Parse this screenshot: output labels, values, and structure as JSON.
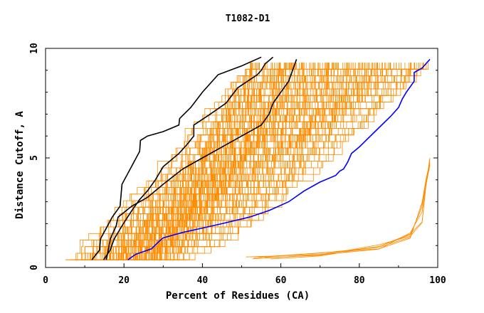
{
  "chart_data": {
    "type": "line",
    "title": "T1082-D1",
    "xlabel": "Percent of Residues (CA)",
    "ylabel": "Distance Cutoff, A",
    "xlim": [
      0,
      100
    ],
    "ylim": [
      0,
      10
    ],
    "x_ticks": [
      0,
      20,
      40,
      60,
      80,
      100
    ],
    "y_ticks": [
      0,
      5,
      10
    ],
    "grid": false,
    "legend": "none",
    "colors": {
      "background_models": "#ff8c00",
      "highlight_black": "#000000",
      "highlight_blue": "#0000ff"
    },
    "highlight_series": [
      {
        "color": "#000000",
        "points": [
          [
            11.8,
            0.35
          ],
          [
            13.8,
            0.8
          ],
          [
            14,
            1.3
          ],
          [
            17,
            2.3
          ],
          [
            19,
            2.8
          ],
          [
            19.5,
            3.8
          ],
          [
            21,
            4.3
          ],
          [
            24,
            5.3
          ],
          [
            24.2,
            5.8
          ],
          [
            26,
            6.0
          ],
          [
            30,
            6.2
          ],
          [
            34,
            6.5
          ],
          [
            34.2,
            6.8
          ],
          [
            37,
            7.3
          ],
          [
            40,
            8.0
          ],
          [
            44,
            8.8
          ],
          [
            50,
            9.2
          ],
          [
            55,
            9.6
          ]
        ]
      },
      {
        "color": "#000000",
        "points": [
          [
            14.8,
            0.35
          ],
          [
            16.5,
            0.8
          ],
          [
            17.5,
            1.3
          ],
          [
            19.5,
            1.9
          ],
          [
            22,
            2.6
          ],
          [
            24,
            3.1
          ],
          [
            26,
            3.5
          ],
          [
            28,
            4.0
          ],
          [
            30,
            4.6
          ],
          [
            34,
            5.2
          ],
          [
            36,
            5.6
          ],
          [
            37.8,
            6.0
          ],
          [
            37.8,
            6.5
          ],
          [
            42,
            7.0
          ],
          [
            46,
            7.5
          ],
          [
            49,
            8.2
          ],
          [
            54,
            8.8
          ],
          [
            55,
            9.0
          ],
          [
            56,
            9.3
          ],
          [
            58,
            9.6
          ]
        ]
      },
      {
        "color": "#000000",
        "points": [
          [
            15.5,
            0.35
          ],
          [
            16,
            0.8
          ],
          [
            16.5,
            1.3
          ],
          [
            18,
            1.9
          ],
          [
            18.5,
            2.3
          ],
          [
            22,
            2.8
          ],
          [
            26,
            3.2
          ],
          [
            30,
            3.8
          ],
          [
            35,
            4.5
          ],
          [
            40,
            5.0
          ],
          [
            45,
            5.5
          ],
          [
            50,
            6.0
          ],
          [
            55,
            6.5
          ],
          [
            57,
            7.0
          ],
          [
            58,
            7.5
          ],
          [
            60,
            8.0
          ],
          [
            62,
            8.5
          ],
          [
            64,
            9.5
          ]
        ]
      },
      {
        "color": "#0000ff",
        "points": [
          [
            21,
            0.35
          ],
          [
            23,
            0.6
          ],
          [
            27,
            0.85
          ],
          [
            29,
            1.2
          ],
          [
            30,
            1.35
          ],
          [
            35,
            1.6
          ],
          [
            40,
            1.8
          ],
          [
            45,
            2.0
          ],
          [
            52,
            2.3
          ],
          [
            57,
            2.6
          ],
          [
            62,
            3.0
          ],
          [
            66,
            3.5
          ],
          [
            70,
            3.9
          ],
          [
            74,
            4.2
          ],
          [
            75,
            4.4
          ],
          [
            76,
            4.5
          ],
          [
            77,
            4.8
          ],
          [
            78,
            5.2
          ],
          [
            80,
            5.5
          ],
          [
            84,
            6.2
          ],
          [
            88,
            6.9
          ],
          [
            90,
            7.3
          ],
          [
            91,
            7.7
          ],
          [
            92,
            8.0
          ],
          [
            94,
            8.5
          ],
          [
            94,
            8.9
          ],
          [
            96,
            9.1
          ],
          [
            98,
            9.5
          ]
        ]
      }
    ],
    "background_series_count": 150
  }
}
